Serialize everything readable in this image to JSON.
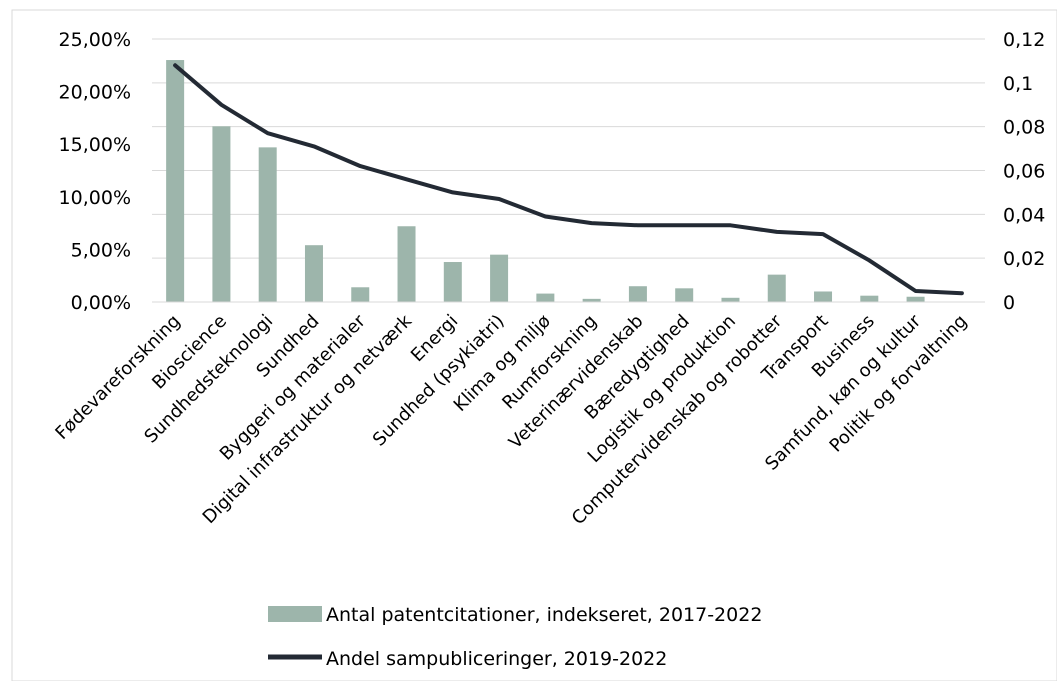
{
  "chart_data": {
    "type": "bar+line",
    "categories": [
      "Fødevareforskning",
      "Bioscience",
      "Sundhedsteknologi",
      "Sundhed",
      "Byggeri og materialer",
      "Digital infrastruktur og netværk",
      "Energi",
      "Sundhed (psykiatri)",
      "Klima og miljø",
      "Rumforskning",
      "Veterinærvidenskab",
      "Bæredygtighed",
      "Logistik og produktion",
      "Computervidenskab og robotter",
      "Transport",
      "Business",
      "Samfund, køn og kultur",
      "Politik og forvaltning"
    ],
    "series": [
      {
        "name": "Antal patentcitationer, indekseret, 2017-2022",
        "type": "bar",
        "axis": "left",
        "color": "#9db5ab",
        "values": [
          23.0,
          16.7,
          14.7,
          5.4,
          1.4,
          7.2,
          3.8,
          4.5,
          0.8,
          0.3,
          1.5,
          1.3,
          0.4,
          2.6,
          1.0,
          0.6,
          0.5,
          0.0
        ]
      },
      {
        "name": "Andel sampubliceringer, 2019-2022",
        "type": "line",
        "axis": "right",
        "color": "#232a34",
        "values": [
          0.108,
          0.09,
          0.077,
          0.071,
          0.062,
          0.056,
          0.05,
          0.047,
          0.039,
          0.036,
          0.035,
          0.035,
          0.035,
          0.032,
          0.031,
          0.019,
          0.005,
          0.004
        ]
      }
    ],
    "y_left": {
      "range": [
        0,
        25
      ],
      "ticks": [
        "0,00%",
        "5,00%",
        "10,00%",
        "15,00%",
        "20,00%",
        "25,00%"
      ]
    },
    "y_right": {
      "range": [
        0,
        0.12
      ],
      "ticks": [
        "0",
        "0,02",
        "0,04",
        "0,06",
        "0,08",
        "0,1",
        "0,12"
      ]
    },
    "grid": true,
    "legend_position": "bottom-center"
  }
}
